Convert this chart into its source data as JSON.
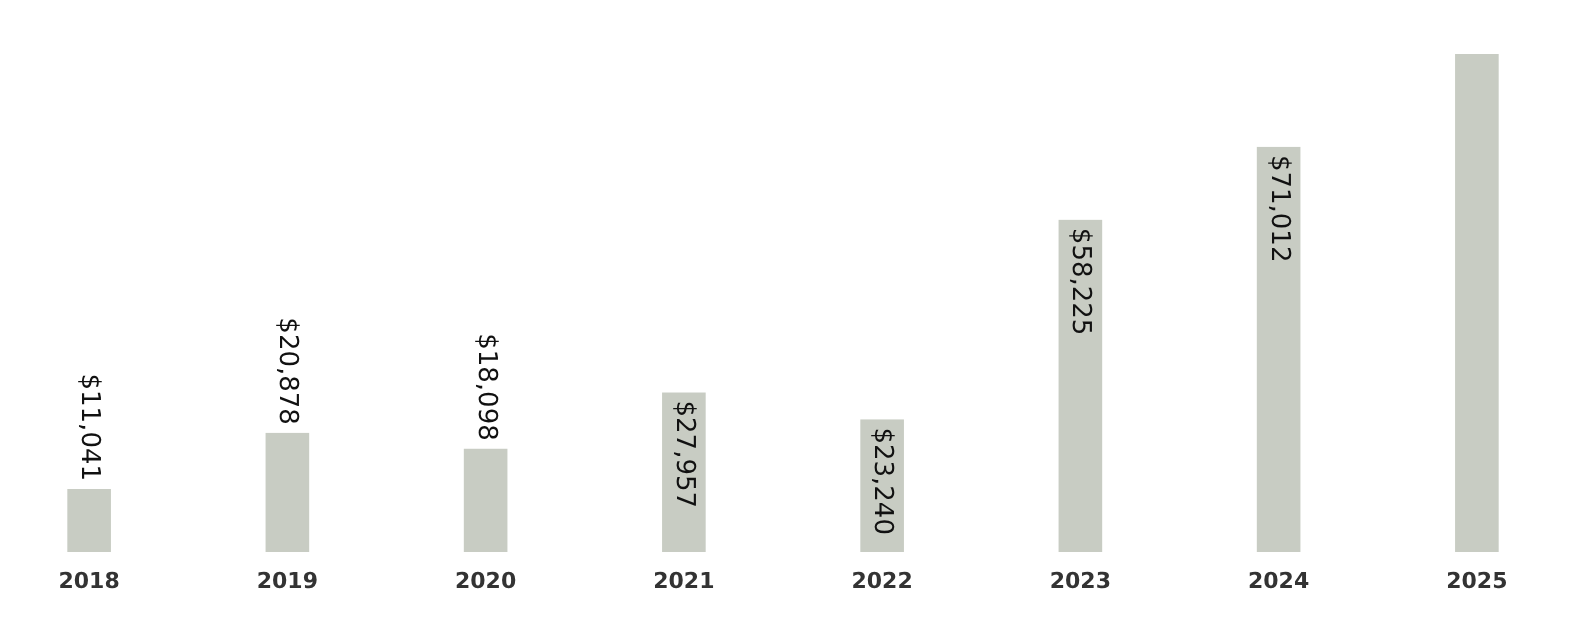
{
  "chart_data": {
    "type": "bar",
    "categories": [
      "2018",
      "2019",
      "2020",
      "2021",
      "2022",
      "2023",
      "2024",
      "2025"
    ],
    "values": [
      11041,
      20878,
      18098,
      27957,
      23240,
      58225,
      71012,
      87300
    ],
    "value_labels": [
      "$11,041",
      "$20,878",
      "$18,098",
      "$27,957",
      "$23,240",
      "$58,225",
      "$71,012",
      null
    ],
    "color": "#c8ccc3",
    "tick_labels": "x"
  }
}
